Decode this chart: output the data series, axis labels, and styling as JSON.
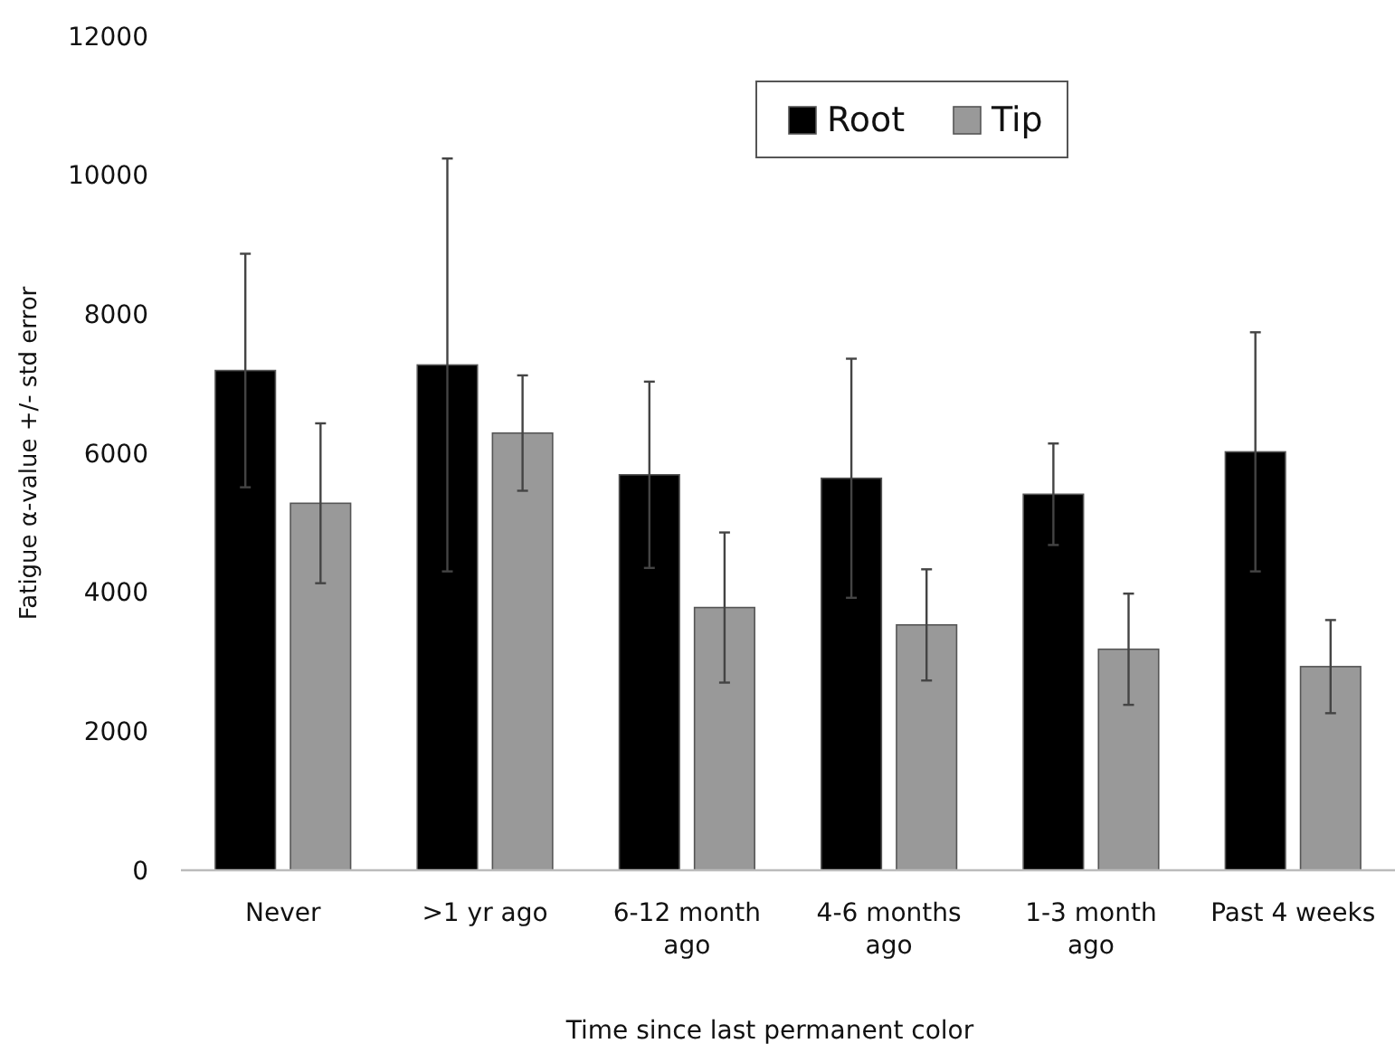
{
  "chart_data": {
    "type": "bar",
    "xlabel": "Time since last permanent color",
    "ylabel": "Fatigue α-value +/- std error",
    "categories": [
      "Never",
      ">1 yr ago",
      "6-12 month ago",
      "4-6 months ago",
      "1-3 month ago",
      "Past 4 weeks"
    ],
    "series": [
      {
        "name": "Root",
        "color": "#000000",
        "values": [
          7190,
          7270,
          5690,
          5640,
          5410,
          6020
        ],
        "errors": [
          1680,
          2970,
          1340,
          1720,
          730,
          1720
        ]
      },
      {
        "name": "Tip",
        "color": "#999999",
        "values": [
          5280,
          6290,
          3780,
          3530,
          3180,
          2930
        ],
        "errors": [
          1150,
          830,
          1080,
          800,
          800,
          670
        ]
      }
    ],
    "ylim": [
      0,
      12000
    ],
    "yticks": [
      0,
      2000,
      4000,
      6000,
      8000,
      10000,
      12000
    ],
    "legend": "top right"
  }
}
